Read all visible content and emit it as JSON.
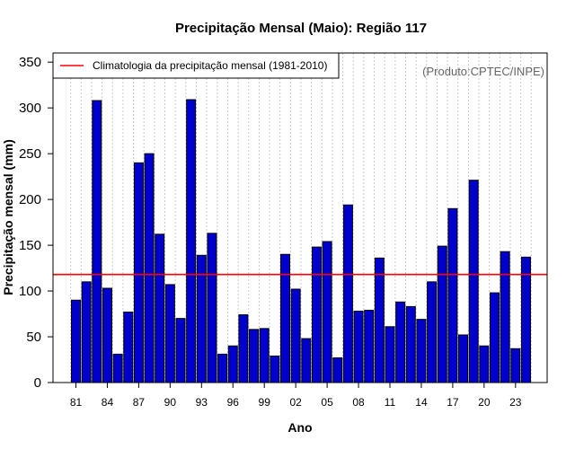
{
  "chart_data": {
    "type": "bar",
    "title": "Precipitação Mensal (Maio): Região 117",
    "xlabel": "Ano",
    "ylabel": "Precipitação mensal (mm)",
    "ylim": [
      0,
      360
    ],
    "yticks": [
      0,
      50,
      100,
      150,
      200,
      250,
      300,
      350
    ],
    "years": [
      1981,
      1982,
      1983,
      1984,
      1985,
      1986,
      1987,
      1988,
      1989,
      1990,
      1991,
      1992,
      1993,
      1994,
      1995,
      1996,
      1997,
      1998,
      1999,
      2000,
      2001,
      2002,
      2003,
      2004,
      2005,
      2006,
      2007,
      2008,
      2009,
      2010,
      2011,
      2012,
      2013,
      2014,
      2015,
      2016,
      2017,
      2018,
      2019,
      2020,
      2021,
      2022,
      2023,
      2024
    ],
    "values": [
      90,
      110,
      308,
      103,
      31,
      77,
      240,
      250,
      162,
      107,
      70,
      309,
      139,
      163,
      31,
      40,
      74,
      58,
      59,
      29,
      140,
      102,
      48,
      148,
      154,
      27,
      194,
      78,
      79,
      136,
      61,
      88,
      83,
      69,
      110,
      149,
      190,
      52,
      221,
      40,
      98,
      143,
      37,
      137
    ],
    "tick_labels": [
      {
        "year": 1981,
        "label": "81"
      },
      {
        "year": 1984,
        "label": "84"
      },
      {
        "year": 1987,
        "label": "87"
      },
      {
        "year": 1990,
        "label": "90"
      },
      {
        "year": 1993,
        "label": "93"
      },
      {
        "year": 1996,
        "label": "96"
      },
      {
        "year": 1999,
        "label": "99"
      },
      {
        "year": 2002,
        "label": "02"
      },
      {
        "year": 2005,
        "label": "05"
      },
      {
        "year": 2008,
        "label": "08"
      },
      {
        "year": 2011,
        "label": "11"
      },
      {
        "year": 2014,
        "label": "14"
      },
      {
        "year": 2017,
        "label": "17"
      },
      {
        "year": 2020,
        "label": "20"
      },
      {
        "year": 2023,
        "label": "23"
      }
    ],
    "climatology": {
      "label": "Climatologia da precipitação mensal (1981-2010)",
      "value": 118
    },
    "legend_position": "top-left",
    "grid": "vertical dotted",
    "bar_color": "#0000cc",
    "line_color": "#ff0000",
    "credit": "(Produto:CPTEC/INPE)"
  }
}
